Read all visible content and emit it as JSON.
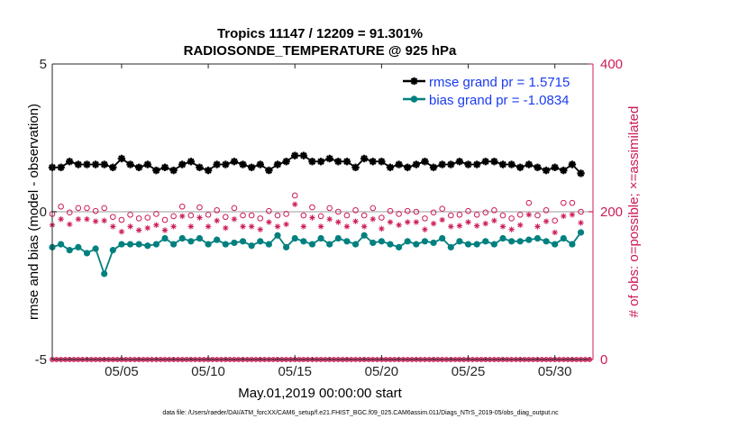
{
  "chart_data": {
    "type": "line",
    "title": "Tropics 11147 / 12209 = 91.301%",
    "subtitle": "RADIOSONDE_TEMPERATURE @ 925 hPa",
    "xlabel": "May.01,2019 00:00:00 start",
    "ylabel": "rmse and bias (model - observation)",
    "y2label": "# of obs: o=possible; ×=assimilated",
    "footnote": "data file: /Users/raeder/DAI/ATM_forcXX/CAM6_setup/f.e21.FHIST_BGC.f09_025.CAM6assim.011/Diags_NTrS_2019-05/obs_diag_output.nc",
    "xlim": [
      1,
      32.2
    ],
    "ylim": [
      -5,
      5
    ],
    "y2lim": [
      0,
      400
    ],
    "xticks": [
      5,
      10,
      15,
      20,
      25,
      30
    ],
    "xtick_labels": [
      "05/05",
      "05/10",
      "05/15",
      "05/20",
      "05/25",
      "05/30"
    ],
    "yticks": [
      -5,
      0,
      5
    ],
    "ytick_labels": [
      "-5",
      "0",
      "5"
    ],
    "y2ticks": [
      0,
      200,
      400
    ],
    "y2tick_labels": [
      "0",
      "200",
      "400"
    ],
    "grid": false,
    "legend_position": "top-right",
    "colors": {
      "rmse": "#000000",
      "bias": "#00807f",
      "obs": "#cc1a59",
      "zero_line": "#bdbdbd",
      "legend_text": "#1a3cf0"
    },
    "legend": [
      {
        "label": "rmse grand pr = 1.5715",
        "series": "rmse"
      },
      {
        "label": "bias grand pr = -1.0834",
        "series": "bias"
      }
    ],
    "series": [
      {
        "name": "rmse",
        "marker": "asterisk",
        "line": true,
        "x": [
          1.0,
          1.5,
          2.0,
          2.5,
          3.0,
          3.5,
          4.0,
          4.5,
          5.0,
          5.5,
          6.0,
          6.5,
          7.0,
          7.5,
          8.0,
          8.5,
          9.0,
          9.5,
          10.0,
          10.5,
          11.0,
          11.5,
          12.0,
          12.5,
          13.0,
          13.5,
          14.0,
          14.5,
          15.0,
          15.5,
          16.0,
          16.5,
          17.0,
          17.5,
          18.0,
          18.5,
          19.0,
          19.5,
          20.0,
          20.5,
          21.0,
          21.5,
          22.0,
          22.5,
          23.0,
          23.5,
          24.0,
          24.5,
          25.0,
          25.5,
          26.0,
          26.5,
          27.0,
          27.5,
          28.0,
          28.5,
          29.0,
          29.5,
          30.0,
          30.5,
          31.0,
          31.5
        ],
        "y": [
          1.5,
          1.5,
          1.7,
          1.6,
          1.6,
          1.6,
          1.6,
          1.5,
          1.8,
          1.6,
          1.5,
          1.6,
          1.4,
          1.5,
          1.4,
          1.6,
          1.7,
          1.5,
          1.4,
          1.6,
          1.6,
          1.7,
          1.6,
          1.5,
          1.6,
          1.4,
          1.6,
          1.7,
          1.9,
          1.9,
          1.7,
          1.7,
          1.8,
          1.7,
          1.7,
          1.5,
          1.8,
          1.7,
          1.7,
          1.5,
          1.6,
          1.5,
          1.6,
          1.7,
          1.5,
          1.6,
          1.6,
          1.7,
          1.6,
          1.6,
          1.7,
          1.7,
          1.6,
          1.6,
          1.5,
          1.6,
          1.5,
          1.4,
          1.5,
          1.4,
          1.6,
          1.3
        ]
      },
      {
        "name": "bias",
        "marker": "circle",
        "line": true,
        "x": [
          1.0,
          1.5,
          2.0,
          2.5,
          3.0,
          3.5,
          4.0,
          4.5,
          5.0,
          5.5,
          6.0,
          6.5,
          7.0,
          7.5,
          8.0,
          8.5,
          9.0,
          9.5,
          10.0,
          10.5,
          11.0,
          11.5,
          12.0,
          12.5,
          13.0,
          13.5,
          14.0,
          14.5,
          15.0,
          15.5,
          16.0,
          16.5,
          17.0,
          17.5,
          18.0,
          18.5,
          19.0,
          19.5,
          20.0,
          20.5,
          21.0,
          21.5,
          22.0,
          22.5,
          23.0,
          23.5,
          24.0,
          24.5,
          25.0,
          25.5,
          26.0,
          26.5,
          27.0,
          27.5,
          28.0,
          28.5,
          29.0,
          29.5,
          30.0,
          30.5,
          31.0,
          31.5
        ],
        "y": [
          -1.2,
          -1.1,
          -1.3,
          -1.2,
          -1.4,
          -1.25,
          -2.1,
          -1.3,
          -1.1,
          -1.1,
          -1.1,
          -1.15,
          -1.1,
          -0.9,
          -1.1,
          -0.9,
          -1.0,
          -0.9,
          -1.1,
          -0.95,
          -1.1,
          -1.05,
          -1.0,
          -1.15,
          -1.0,
          -1.1,
          -0.8,
          -1.2,
          -0.9,
          -1.0,
          -1.1,
          -0.9,
          -1.1,
          -0.9,
          -1.0,
          -1.1,
          -0.8,
          -1.05,
          -1.0,
          -1.1,
          -1.2,
          -1.0,
          -1.1,
          -1.0,
          -1.05,
          -0.9,
          -1.2,
          -1.0,
          -1.1,
          -1.1,
          -1.0,
          -1.1,
          -0.9,
          -1.0,
          -1.0,
          -0.95,
          -0.9,
          -1.0,
          -1.1,
          -0.9,
          -1.1,
          -0.7
        ]
      },
      {
        "name": "obs possible",
        "axis": "right",
        "marker": "open-circle",
        "x": [
          1.0,
          1.5,
          2.0,
          2.5,
          3.0,
          3.5,
          4.0,
          4.5,
          5.0,
          5.5,
          6.0,
          6.5,
          7.0,
          7.5,
          8.0,
          8.5,
          9.0,
          9.5,
          10.0,
          10.5,
          11.0,
          11.5,
          12.0,
          12.5,
          13.0,
          13.5,
          14.0,
          14.5,
          15.0,
          15.5,
          16.0,
          16.5,
          17.0,
          17.5,
          18.0,
          18.5,
          19.0,
          19.5,
          20.0,
          20.5,
          21.0,
          21.5,
          22.0,
          22.5,
          23.0,
          23.5,
          24.0,
          24.5,
          25.0,
          25.5,
          26.0,
          26.5,
          27.0,
          27.5,
          28.0,
          28.5,
          29.0,
          29.5,
          30.0,
          30.5,
          31.0,
          31.5
        ],
        "y": [
          197,
          207,
          199,
          205,
          205,
          201,
          205,
          193,
          189,
          196,
          191,
          192,
          197,
          189,
          194,
          207,
          195,
          206,
          196,
          202,
          193,
          205,
          195,
          195,
          191,
          201,
          195,
          197,
          222,
          195,
          206,
          194,
          205,
          200,
          195,
          202,
          195,
          205,
          192,
          201,
          197,
          201,
          200,
          191,
          199,
          204,
          195,
          196,
          201,
          196,
          199,
          202,
          195,
          191,
          196,
          212,
          195,
          202,
          188,
          212,
          212,
          200
        ]
      },
      {
        "name": "obs assimilated",
        "axis": "right",
        "marker": "asterisk",
        "x": [
          1.0,
          1.5,
          2.0,
          2.5,
          3.0,
          3.5,
          4.0,
          4.5,
          5.0,
          5.5,
          6.0,
          6.5,
          7.0,
          7.5,
          8.0,
          8.5,
          9.0,
          9.5,
          10.0,
          10.5,
          11.0,
          11.5,
          12.0,
          12.5,
          13.0,
          13.5,
          14.0,
          14.5,
          15.0,
          15.5,
          16.0,
          16.5,
          17.0,
          17.5,
          18.0,
          18.5,
          19.0,
          19.5,
          20.0,
          20.5,
          21.0,
          21.5,
          22.0,
          22.5,
          23.0,
          23.5,
          24.0,
          24.5,
          25.0,
          25.5,
          26.0,
          26.5,
          27.0,
          27.5,
          28.0,
          28.5,
          29.0,
          29.5,
          30.0,
          30.5,
          31.0,
          31.5
        ],
        "y": [
          182,
          190,
          183,
          190,
          190,
          187,
          188,
          180,
          173,
          180,
          175,
          178,
          182,
          175,
          180,
          194,
          180,
          192,
          180,
          188,
          178,
          190,
          180,
          180,
          176,
          186,
          180,
          183,
          210,
          180,
          192,
          180,
          190,
          186,
          180,
          187,
          180,
          190,
          177,
          186,
          182,
          186,
          186,
          176,
          184,
          189,
          180,
          181,
          186,
          181,
          184,
          188,
          180,
          176,
          182,
          196,
          180,
          187,
          172,
          194,
          196,
          185
        ]
      },
      {
        "name": "zero-count markers",
        "axis": "right",
        "marker": "open-circle-and-asterisk",
        "x": [
          1.0,
          1.25,
          1.5,
          1.75,
          2.0,
          2.25,
          2.5,
          2.75,
          3.0,
          3.25,
          3.5,
          3.75,
          4.0,
          4.25,
          4.5,
          4.75,
          5.0,
          5.25,
          5.5,
          5.75,
          6.0,
          6.25,
          6.5,
          6.75,
          7.0,
          7.25,
          7.5,
          7.75,
          8.0,
          8.25,
          8.5,
          8.75,
          9.0,
          9.25,
          9.5,
          9.75,
          10.0,
          10.25,
          10.5,
          10.75,
          11.0,
          11.25,
          11.5,
          11.75,
          12.0,
          12.25,
          12.5,
          12.75,
          13.0,
          13.25,
          13.5,
          13.75,
          14.0,
          14.25,
          14.5,
          14.75,
          15.0,
          15.25,
          15.5,
          15.75,
          16.0,
          16.25,
          16.5,
          16.75,
          17.0,
          17.25,
          17.5,
          17.75,
          18.0,
          18.25,
          18.5,
          18.75,
          19.0,
          19.25,
          19.5,
          19.75,
          20.0,
          20.25,
          20.5,
          20.75,
          21.0,
          21.25,
          21.5,
          21.75,
          22.0,
          22.25,
          22.5,
          22.75,
          23.0,
          23.25,
          23.5,
          23.75,
          24.0,
          24.25,
          24.5,
          24.75,
          25.0,
          25.25,
          25.5,
          25.75,
          26.0,
          26.25,
          26.5,
          26.75,
          27.0,
          27.25,
          27.5,
          27.75,
          28.0,
          28.25,
          28.5,
          28.75,
          29.0,
          29.25,
          29.5,
          29.75,
          30.0,
          30.25,
          30.5,
          30.75,
          31.0,
          31.25,
          31.5,
          31.75,
          32.0
        ],
        "y": [
          0,
          0,
          0,
          0,
          0,
          0,
          0,
          0,
          0,
          0,
          0,
          0,
          0,
          0,
          0,
          0,
          0,
          0,
          0,
          0,
          0,
          0,
          0,
          0,
          0,
          0,
          0,
          0,
          0,
          0,
          0,
          0,
          0,
          0,
          0,
          0,
          0,
          0,
          0,
          0,
          0,
          0,
          0,
          0,
          0,
          0,
          0,
          0,
          0,
          0,
          0,
          0,
          0,
          0,
          0,
          0,
          0,
          0,
          0,
          0,
          0,
          0,
          0,
          0,
          0,
          0,
          0,
          0,
          0,
          0,
          0,
          0,
          0,
          0,
          0,
          0,
          0,
          0,
          0,
          0,
          0,
          0,
          0,
          0,
          0,
          0,
          0,
          0,
          0,
          0,
          0,
          0,
          0,
          0,
          0,
          0,
          0,
          0,
          0,
          0,
          0,
          0,
          0,
          0,
          0,
          0,
          0,
          0,
          0,
          0,
          0,
          0,
          0,
          0,
          0,
          0,
          0,
          0,
          0,
          0,
          0,
          0,
          0,
          0,
          0
        ]
      }
    ]
  }
}
